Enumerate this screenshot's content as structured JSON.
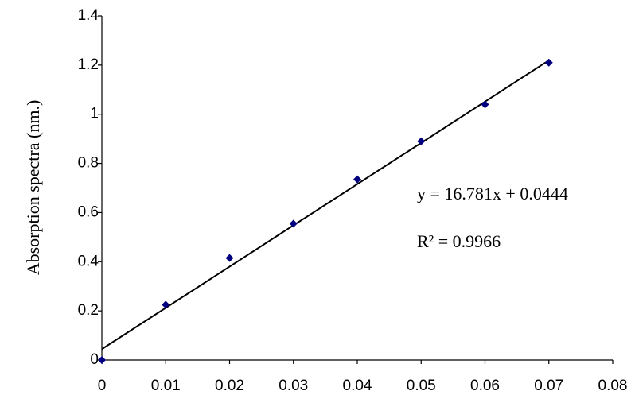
{
  "chart_data": {
    "type": "scatter",
    "y_label": "Absorption spectra (nm.)",
    "x": [
      0,
      0.01,
      0.02,
      0.03,
      0.04,
      0.05,
      0.06,
      0.07
    ],
    "values": [
      0,
      0.225,
      0.415,
      0.555,
      0.735,
      0.89,
      1.04,
      1.21
    ],
    "color": "#000080",
    "trendline": {
      "slope": 16.781,
      "intercept": 0.0444,
      "color": "#000000"
    },
    "annotations": [
      "y  = 16.781x + 0.0444",
      "R² = 0.9966"
    ],
    "xlim": [
      0,
      0.08
    ],
    "xticks": [
      0,
      0.01,
      0.02,
      0.03,
      0.04,
      0.05,
      0.06,
      0.07,
      0.08
    ],
    "ylim": [
      0,
      1.4
    ],
    "yticks": [
      0,
      0.2,
      0.4,
      0.6,
      0.8,
      1,
      1.2,
      1.4
    ],
    "grid": false
  }
}
